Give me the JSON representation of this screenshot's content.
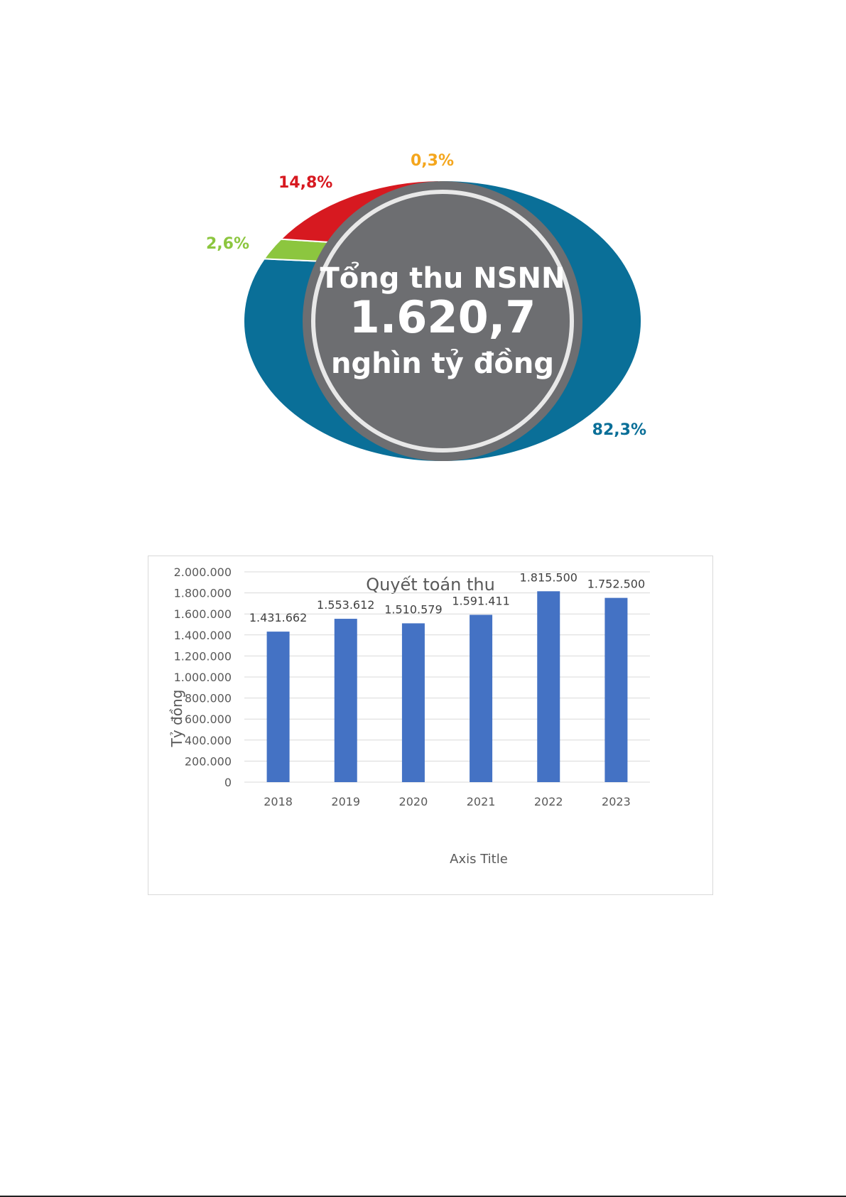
{
  "chart_data": [
    {
      "type": "pie",
      "donut": true,
      "center_text": [
        "Tổng thu NSNN",
        "1.620,7",
        "nghìn tỷ đồng"
      ],
      "slices": [
        {
          "label": "82,3%",
          "value": 82.3,
          "color": "#0a6f98"
        },
        {
          "label": "2,6%",
          "value": 2.6,
          "color": "#8cc63f"
        },
        {
          "label": "14,8%",
          "value": 14.8,
          "color": "#d71920"
        },
        {
          "label": "0,3%",
          "value": 0.3,
          "color": "#f4a61d"
        }
      ],
      "center_color": "#6d6e71"
    },
    {
      "type": "bar",
      "title": "Quyết toán thu",
      "xlabel": "Axis Title",
      "ylabel": "Tỷ đồng",
      "categories": [
        "2018",
        "2019",
        "2020",
        "2021",
        "2022",
        "2023"
      ],
      "values": [
        1431662,
        1553612,
        1510579,
        1591411,
        1815500,
        1752500
      ],
      "value_labels": [
        "1.431.662",
        "1.553.612",
        "1.510.579",
        "1.591.411",
        "1.815.500",
        "1.752.500"
      ],
      "ylim": [
        0,
        2000000
      ],
      "yticks": [
        "0",
        "200.000",
        "400.000",
        "600.000",
        "800.000",
        "1.000.000",
        "1.200.000",
        "1.400.000",
        "1.600.000",
        "1.800.000",
        "2.000.000"
      ],
      "grid": true,
      "bar_color": "#4472c4"
    }
  ]
}
